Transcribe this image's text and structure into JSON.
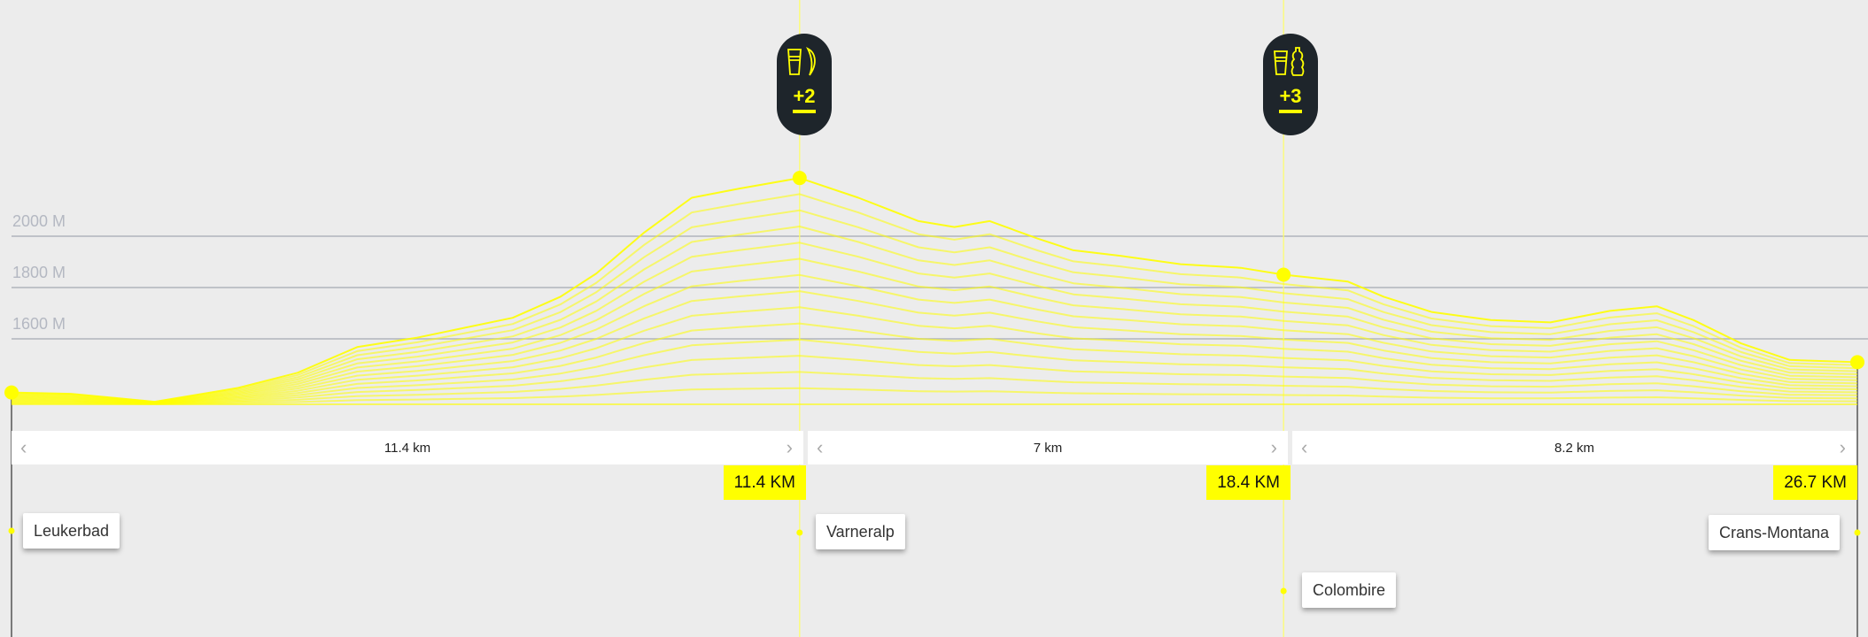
{
  "colors": {
    "accent": "#ffff00",
    "pill_bg": "#1e252b",
    "grid": "#b0b4bb",
    "background": "#ececec"
  },
  "chart_data": {
    "type": "area",
    "xlabel": "",
    "ylabel": "",
    "xlim": [
      0,
      26.7
    ],
    "ylim_hint": [
      1345,
      2240
    ],
    "y_ticks": [
      {
        "value": 2000,
        "label": "2000 M"
      },
      {
        "value": 1800,
        "label": "1800 M"
      },
      {
        "value": 1600,
        "label": "1600 M"
      }
    ],
    "grid": true,
    "profile": [
      [
        0,
        1391
      ],
      [
        0.86,
        1386
      ],
      [
        2.07,
        1355
      ],
      [
        3.28,
        1409
      ],
      [
        4.14,
        1468
      ],
      [
        5.0,
        1568
      ],
      [
        5.87,
        1605
      ],
      [
        7.25,
        1682
      ],
      [
        7.94,
        1764
      ],
      [
        8.46,
        1855
      ],
      [
        9.15,
        2014
      ],
      [
        9.84,
        2150
      ],
      [
        10.53,
        2186
      ],
      [
        11.4,
        2227
      ],
      [
        12.25,
        2150
      ],
      [
        13.12,
        2059
      ],
      [
        13.64,
        2036
      ],
      [
        14.15,
        2059
      ],
      [
        14.84,
        1991
      ],
      [
        15.36,
        1945
      ],
      [
        16.05,
        1923
      ],
      [
        16.91,
        1891
      ],
      [
        17.78,
        1877
      ],
      [
        18.4,
        1850
      ],
      [
        19.33,
        1823
      ],
      [
        19.85,
        1764
      ],
      [
        20.54,
        1705
      ],
      [
        21.4,
        1673
      ],
      [
        22.26,
        1664
      ],
      [
        23.12,
        1709
      ],
      [
        23.8,
        1727
      ],
      [
        24.33,
        1673
      ],
      [
        25.02,
        1582
      ],
      [
        25.72,
        1518
      ],
      [
        26.7,
        1509
      ]
    ]
  },
  "waypoints": [
    {
      "name": "Leukerbad",
      "km": 0
    },
    {
      "name": "Varneralp",
      "km": 11.4,
      "km_label": "11.4 KM"
    },
    {
      "name": "Colombire",
      "km": 18.4,
      "km_label": "18.4 KM"
    },
    {
      "name": "Crans-Montana",
      "km": 26.7,
      "km_label": "26.7 KM"
    }
  ],
  "segments": [
    {
      "label": "11.4 km"
    },
    {
      "label": "7 km"
    },
    {
      "label": "8.2 km"
    }
  ],
  "aid_stations": [
    {
      "km": 11.4,
      "icons": [
        "drink-cup-icon",
        "banana-icon"
      ],
      "count": "+2"
    },
    {
      "km": 18.4,
      "icons": [
        "drink-cup-icon",
        "bottle-icon"
      ],
      "count": "+3"
    }
  ],
  "nav": {
    "prev": "‹",
    "next": "›"
  }
}
